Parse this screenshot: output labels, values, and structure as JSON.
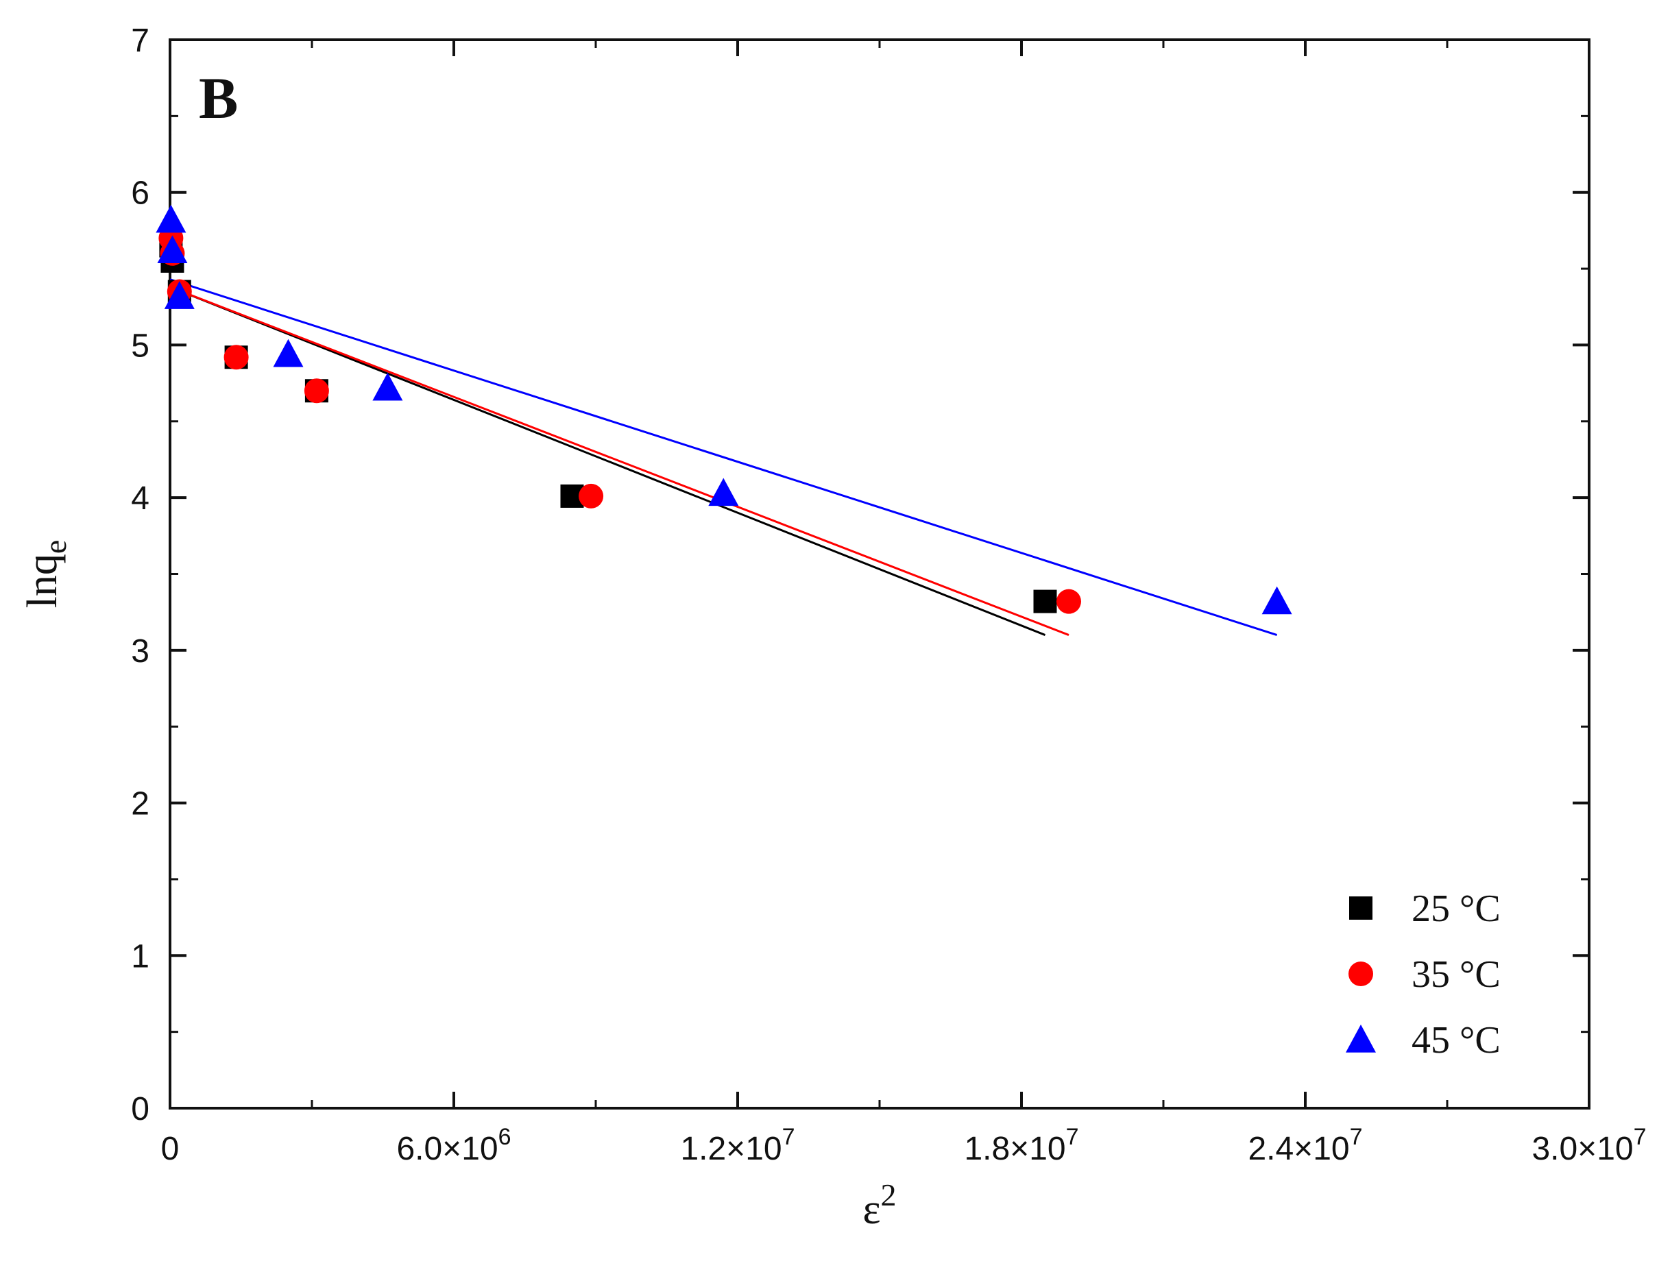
{
  "chart_data": {
    "type": "scatter",
    "panel_label": "B",
    "xlabel": {
      "main": "ε",
      "sup": "2"
    },
    "ylabel": {
      "main": "lnq",
      "sub": "e"
    },
    "xlim": [
      0,
      30000000
    ],
    "ylim": [
      0,
      7
    ],
    "x_ticks": [
      {
        "value": 0,
        "label": "0"
      },
      {
        "value": 6000000,
        "label": "6.0×10",
        "exp": "6"
      },
      {
        "value": 12000000,
        "label": "1.2×10",
        "exp": "7"
      },
      {
        "value": 18000000,
        "label": "1.8×10",
        "exp": "7"
      },
      {
        "value": 24000000,
        "label": "2.4×10",
        "exp": "7"
      },
      {
        "value": 30000000,
        "label": "3.0×10",
        "exp": "7"
      }
    ],
    "y_ticks": [
      {
        "value": 0,
        "label": "0"
      },
      {
        "value": 1,
        "label": "1"
      },
      {
        "value": 2,
        "label": "2"
      },
      {
        "value": 3,
        "label": "3"
      },
      {
        "value": 4,
        "label": "4"
      },
      {
        "value": 5,
        "label": "5"
      },
      {
        "value": 6,
        "label": "6"
      },
      {
        "value": 7,
        "label": "7"
      }
    ],
    "series": [
      {
        "name": "25 °C",
        "color": "#000000",
        "marker": "square",
        "points": [
          [
            20000,
            5.65
          ],
          [
            50000,
            5.55
          ],
          [
            200000,
            5.35
          ],
          [
            1400000,
            4.92
          ],
          [
            3100000,
            4.7
          ],
          [
            8500000,
            4.01
          ],
          [
            18500000,
            3.32
          ]
        ],
        "fit": {
          "x1": 0,
          "y1": 5.38,
          "x2": 18500000,
          "y2": 3.1
        }
      },
      {
        "name": "35 °C",
        "color": "#ff0000",
        "marker": "circle",
        "points": [
          [
            20000,
            5.7
          ],
          [
            50000,
            5.6
          ],
          [
            200000,
            5.35
          ],
          [
            1400000,
            4.92
          ],
          [
            3100000,
            4.7
          ],
          [
            8900000,
            4.01
          ],
          [
            19000000,
            3.32
          ]
        ],
        "fit": {
          "x1": 0,
          "y1": 5.38,
          "x2": 19000000,
          "y2": 3.1
        }
      },
      {
        "name": "45 °C",
        "color": "#0000ff",
        "marker": "triangle",
        "points": [
          [
            20000,
            5.82
          ],
          [
            50000,
            5.62
          ],
          [
            200000,
            5.32
          ],
          [
            2500000,
            4.94
          ],
          [
            4600000,
            4.72
          ],
          [
            11700000,
            4.03
          ],
          [
            23400000,
            3.32
          ]
        ],
        "fit": {
          "x1": 0,
          "y1": 5.43,
          "x2": 23400000,
          "y2": 3.1
        }
      }
    ],
    "legend": {
      "placement": "bottom-right"
    }
  }
}
